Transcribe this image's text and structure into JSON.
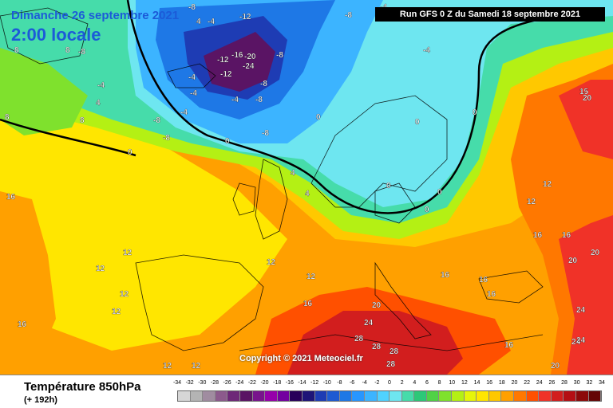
{
  "header": {
    "valid_date": "Dimanche 26 septembre 2021",
    "valid_time": "2:00 locale",
    "run_info": "Run GFS 0 Z du Samedi 18 septembre 2021"
  },
  "footer": {
    "parameter": "Température 850hPa",
    "forecast_hour": "(+ 192h)",
    "copyright": "Copyright © 2021 Meteociel.fr"
  },
  "legend": {
    "unit_steps": [
      "-34",
      "-32",
      "-30",
      "-28",
      "-26",
      "-24",
      "-22",
      "-20",
      "-18",
      "-16",
      "-14",
      "-12",
      "-10",
      "-8",
      "-6",
      "-4",
      "-2",
      "0",
      "2",
      "4",
      "6",
      "8",
      "10",
      "12",
      "14",
      "16",
      "18",
      "20",
      "22",
      "24",
      "26",
      "28",
      "30",
      "32",
      "34"
    ],
    "colors": [
      "#d6d6d6",
      "#b4b4b4",
      "#a08ca0",
      "#8c5a8c",
      "#6e2878",
      "#5a1464",
      "#78148c",
      "#9600aa",
      "#7300a0",
      "#28005a",
      "#1e1478",
      "#1e3cb4",
      "#1e5ad2",
      "#1e78e6",
      "#2896ff",
      "#3cb4ff",
      "#50d2ff",
      "#6ee6f0",
      "#46dcaa",
      "#2dc878",
      "#50d246",
      "#7fe12d",
      "#b4f014",
      "#e6f50a",
      "#ffe600",
      "#ffc800",
      "#ffa000",
      "#ff7800",
      "#ff5000",
      "#f03228",
      "#d21e1e",
      "#b40f14",
      "#8c0a0a",
      "#640505"
    ]
  },
  "map_labels": [
    {
      "text": "-12"
    },
    {
      "text": "-16"
    },
    {
      "text": "-20"
    },
    {
      "text": "-24"
    },
    {
      "text": "-12"
    },
    {
      "text": "-8"
    },
    {
      "text": "-8"
    },
    {
      "text": "-8"
    },
    {
      "text": "-4"
    },
    {
      "text": "-4"
    },
    {
      "text": "-4"
    },
    {
      "text": "-8"
    },
    {
      "text": "-8"
    },
    {
      "text": "-4"
    },
    {
      "text": "-8"
    },
    {
      "text": "-12"
    },
    {
      "text": "-4"
    },
    {
      "text": "-8"
    },
    {
      "text": "-4"
    },
    {
      "text": "0"
    },
    {
      "text": "0"
    },
    {
      "text": "0"
    },
    {
      "text": "0"
    },
    {
      "text": "0"
    },
    {
      "text": "0"
    },
    {
      "text": "0"
    },
    {
      "text": "0"
    },
    {
      "text": "4"
    },
    {
      "text": "4"
    },
    {
      "text": "4"
    },
    {
      "text": "4"
    },
    {
      "text": "8"
    },
    {
      "text": "8"
    },
    {
      "text": "8"
    },
    {
      "text": "8"
    },
    {
      "text": "12"
    },
    {
      "text": "12"
    },
    {
      "text": "12"
    },
    {
      "text": "12"
    },
    {
      "text": "12"
    },
    {
      "text": "12"
    },
    {
      "text": "12"
    },
    {
      "text": "12"
    },
    {
      "text": "16"
    },
    {
      "text": "16"
    },
    {
      "text": "16"
    },
    {
      "text": "16"
    },
    {
      "text": "16"
    },
    {
      "text": "16"
    },
    {
      "text": "16"
    },
    {
      "text": "16"
    },
    {
      "text": "20"
    },
    {
      "text": "20"
    },
    {
      "text": "20"
    },
    {
      "text": "20"
    },
    {
      "text": "24"
    },
    {
      "text": "24"
    },
    {
      "text": "24"
    },
    {
      "text": "24"
    },
    {
      "text": "28"
    },
    {
      "text": "28"
    },
    {
      "text": "28"
    },
    {
      "text": "28"
    },
    {
      "text": "-8"
    },
    {
      "text": "-8"
    },
    {
      "text": "-4"
    },
    {
      "text": "-4"
    },
    {
      "text": "15"
    },
    {
      "text": "20"
    },
    {
      "text": "12"
    },
    {
      "text": "16"
    },
    {
      "text": "12"
    }
  ]
}
